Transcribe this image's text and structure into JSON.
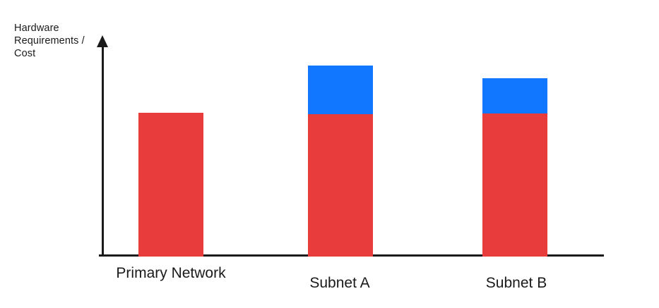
{
  "chart_data": {
    "type": "bar",
    "stacked": true,
    "title": "",
    "xlabel": "",
    "ylabel": "Hardware Requirements / Cost",
    "categories": [
      "Primary Network",
      "Subnet A",
      "Subnet B"
    ],
    "series": [
      {
        "name": "red-segment",
        "color": "#E73B3C",
        "values": [
          204,
          202,
          203
        ]
      },
      {
        "name": "blue-segment",
        "color": "#1277FF",
        "values": [
          0,
          69,
          50
        ]
      }
    ],
    "ylim": [
      0,
      312
    ],
    "value_units": "relative height units (no numeric axis labels shown)",
    "grid": false,
    "legend": "none",
    "axes": {
      "y_axis_arrow": true,
      "x_axis_arrow": false,
      "axis_color": "#1A1A1A",
      "text_color": "#1A1A1A",
      "background": "#FFFFFF"
    }
  }
}
